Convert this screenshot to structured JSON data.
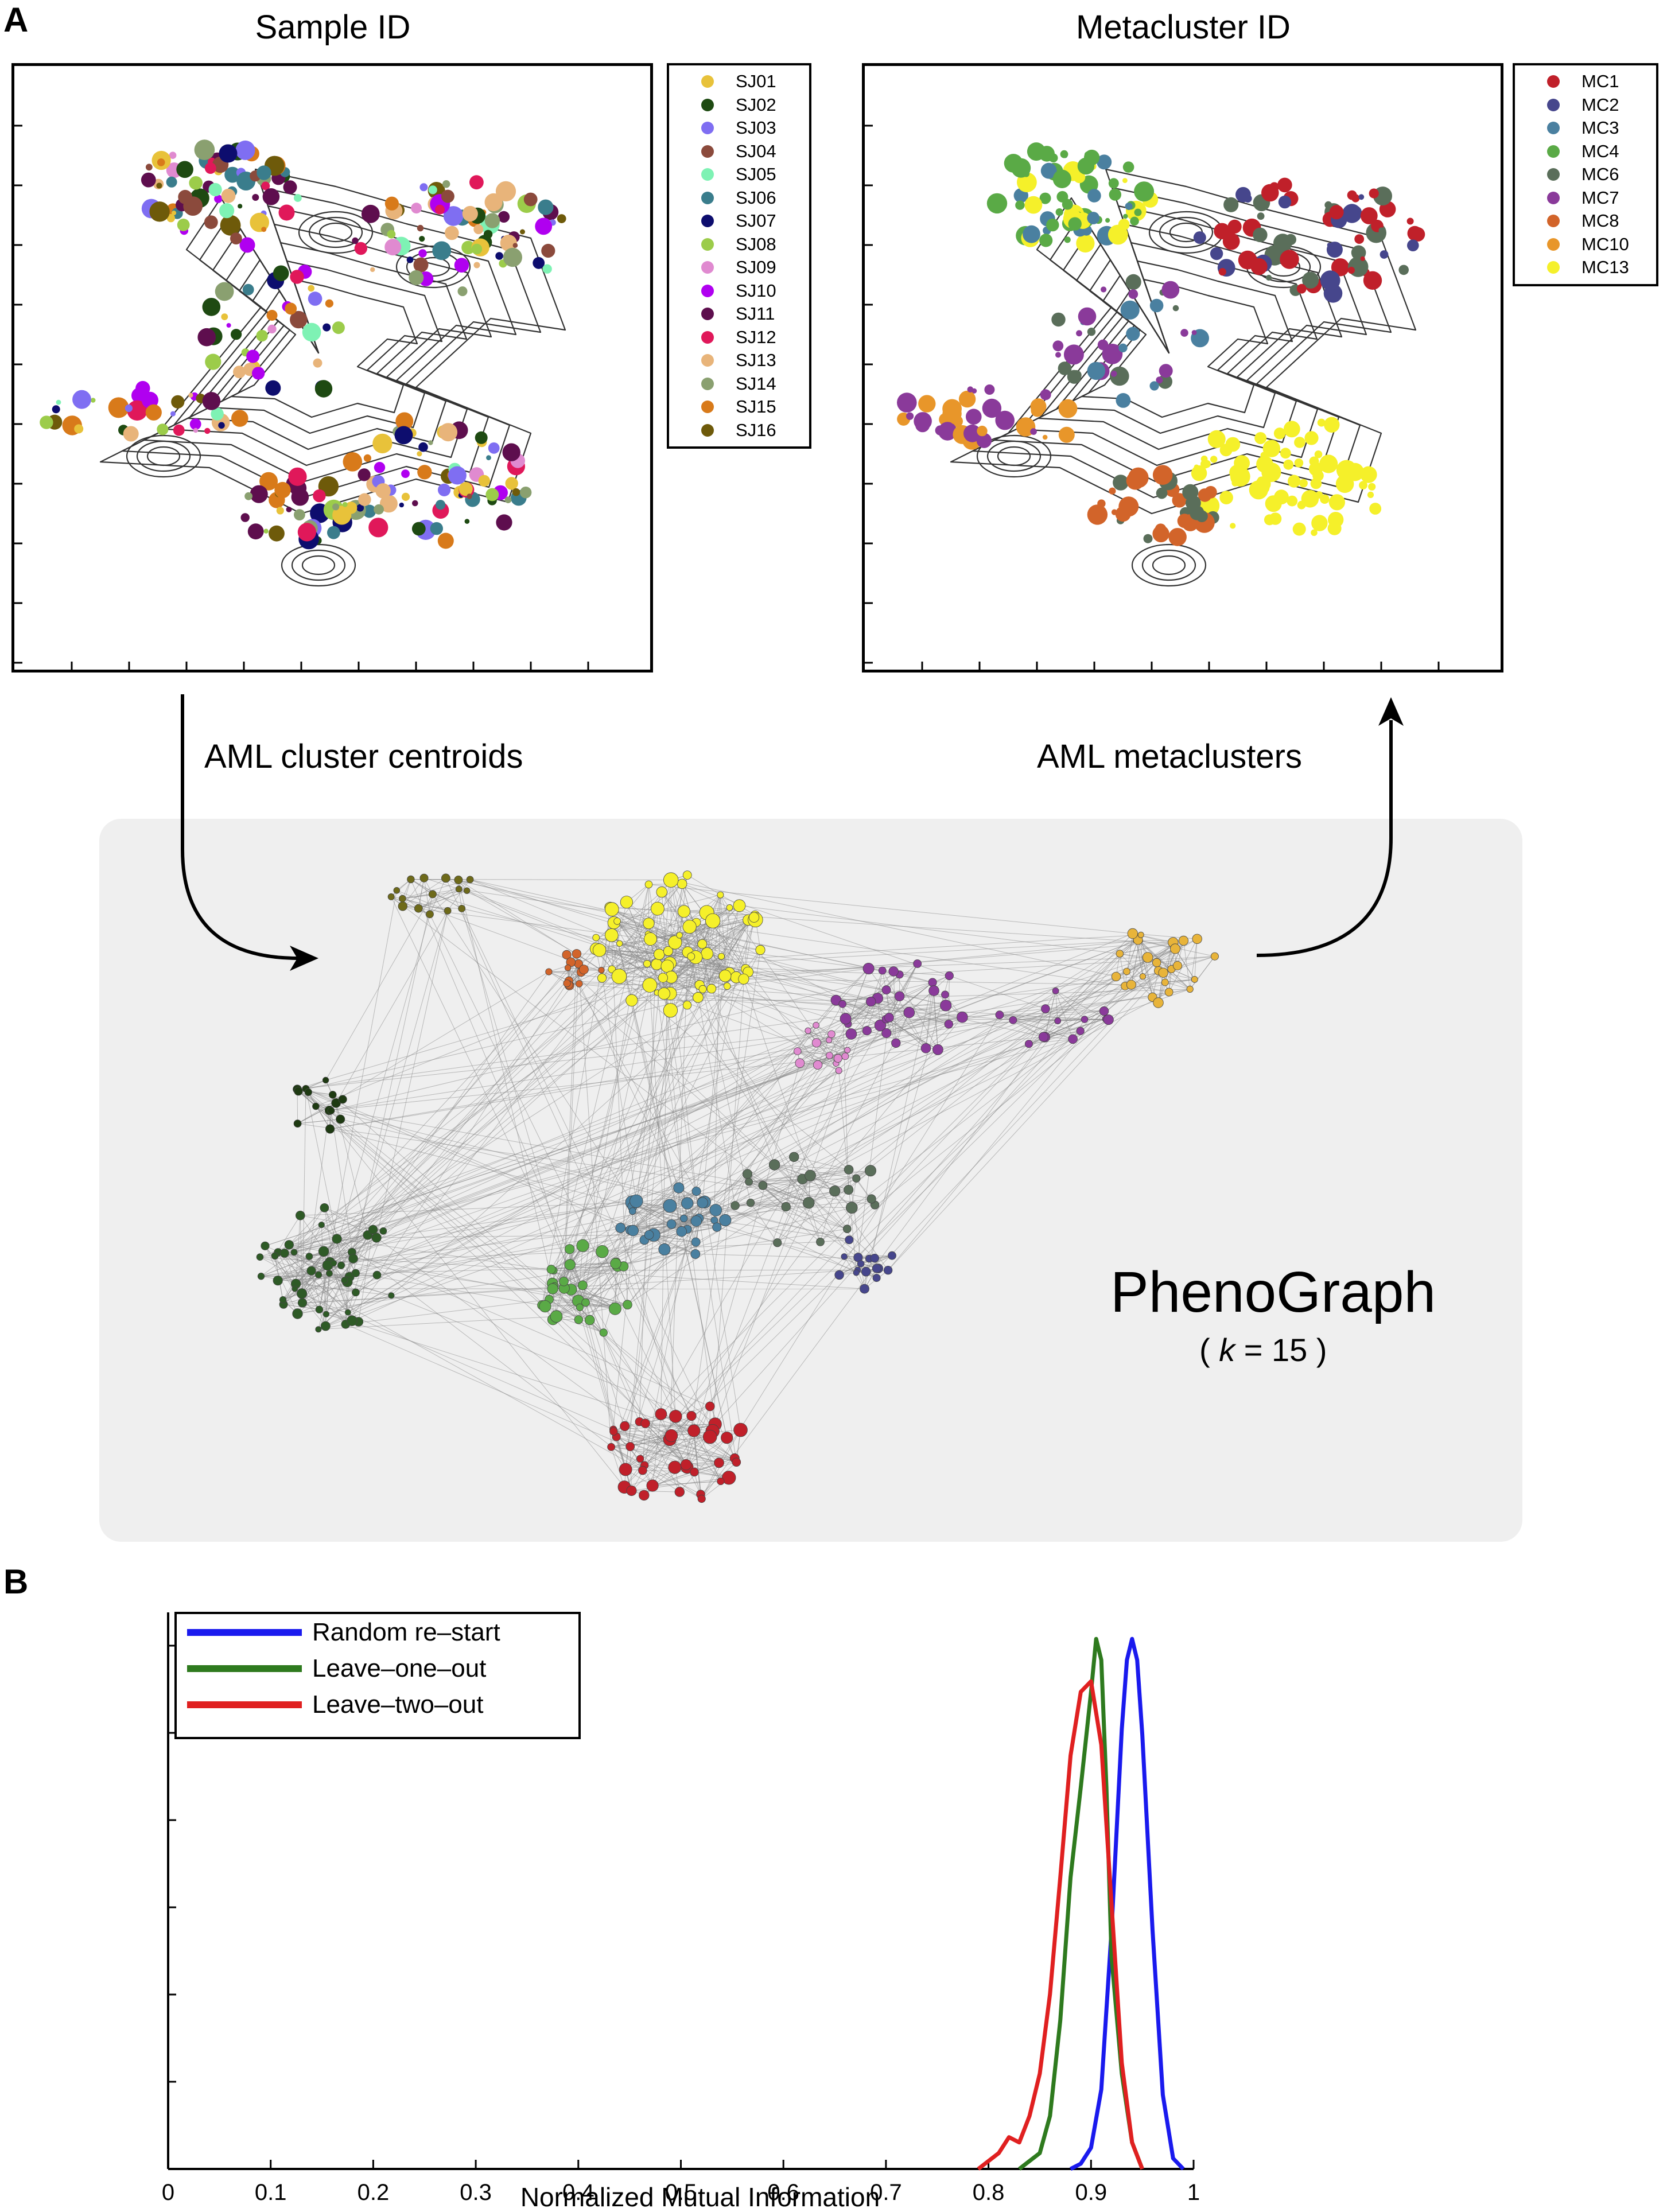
{
  "panel_a": {
    "letter": "A",
    "left_title": "Sample ID",
    "right_title": "Metacluster ID",
    "left_legend": [
      {
        "label": "SJ01",
        "color": "#e8c23a"
      },
      {
        "label": "SJ02",
        "color": "#1e4a12"
      },
      {
        "label": "SJ03",
        "color": "#7f6ef2"
      },
      {
        "label": "SJ04",
        "color": "#8b4a3c"
      },
      {
        "label": "SJ05",
        "color": "#7ef2b4"
      },
      {
        "label": "SJ06",
        "color": "#3a7d8c"
      },
      {
        "label": "SJ07",
        "color": "#0d0d6e"
      },
      {
        "label": "SJ08",
        "color": "#9ccc4a"
      },
      {
        "label": "SJ09",
        "color": "#e08ad0"
      },
      {
        "label": "SJ10",
        "color": "#b000f0"
      },
      {
        "label": "SJ11",
        "color": "#5e0e4e"
      },
      {
        "label": "SJ12",
        "color": "#e0185a"
      },
      {
        "label": "SJ13",
        "color": "#e8b47a"
      },
      {
        "label": "SJ14",
        "color": "#8aa070"
      },
      {
        "label": "SJ15",
        "color": "#d87a1a"
      },
      {
        "label": "SJ16",
        "color": "#6e5a0a"
      }
    ],
    "right_legend": [
      {
        "label": "MC1",
        "color": "#c0202a"
      },
      {
        "label": "MC2",
        "color": "#46468c"
      },
      {
        "label": "MC3",
        "color": "#4a80a0"
      },
      {
        "label": "MC4",
        "color": "#5aaa46"
      },
      {
        "label": "MC6",
        "color": "#5a6e5a"
      },
      {
        "label": "MC7",
        "color": "#8a3a9a"
      },
      {
        "label": "MC8",
        "color": "#d2642a"
      },
      {
        "label": "MC10",
        "color": "#e8962a"
      },
      {
        "label": "MC13",
        "color": "#f5f02a"
      }
    ],
    "arrow_left_label": "AML cluster centroids",
    "arrow_right_label": "AML metaclusters",
    "graph_title": "PhenoGraph",
    "graph_sub_open": "( ",
    "graph_sub_k": "k",
    "graph_sub_rest": " = 15 )"
  },
  "panel_b": {
    "letter": "B",
    "legend": [
      {
        "label": "Random re–start",
        "color": "#1a1aee"
      },
      {
        "label": "Leave–one–out",
        "color": "#2e7a1e"
      },
      {
        "label": "Leave–two–out",
        "color": "#e02020"
      }
    ],
    "xlabel": "Normalized Mutual Information"
  },
  "chart_data": {
    "type": "line",
    "xlabel": "Normalized Mutual Information",
    "ylabel": "",
    "xlim": [
      0,
      1
    ],
    "ylim": [
      0,
      1.05
    ],
    "x_ticks": [
      "0",
      "0.1",
      "0.2",
      "0.3",
      "0.4",
      "0.5",
      "0.6",
      "0.7",
      "0.8",
      "0.9",
      "1"
    ],
    "y_tick_labels_shown": false,
    "legend_position": "top-left",
    "series": [
      {
        "name": "Random re–start",
        "color": "#1a1aee",
        "x": [
          0.88,
          0.89,
          0.9,
          0.91,
          0.92,
          0.93,
          0.935,
          0.94,
          0.945,
          0.95,
          0.96,
          0.97,
          0.98,
          0.99
        ],
        "y": [
          0,
          0.01,
          0.04,
          0.15,
          0.45,
          0.83,
          0.96,
          1.0,
          0.96,
          0.82,
          0.45,
          0.14,
          0.02,
          0
        ]
      },
      {
        "name": "Leave–one–out",
        "color": "#2e7a1e",
        "x": [
          0.83,
          0.85,
          0.86,
          0.87,
          0.88,
          0.89,
          0.9,
          0.905,
          0.91,
          0.915,
          0.92,
          0.93,
          0.94,
          0.95
        ],
        "y": [
          0,
          0.03,
          0.1,
          0.28,
          0.55,
          0.72,
          0.9,
          1.0,
          0.96,
          0.72,
          0.4,
          0.18,
          0.05,
          0
        ]
      },
      {
        "name": "Leave–two–out",
        "color": "#e02020",
        "x": [
          0.79,
          0.81,
          0.82,
          0.83,
          0.84,
          0.85,
          0.86,
          0.87,
          0.88,
          0.89,
          0.9,
          0.91,
          0.92,
          0.93,
          0.94,
          0.95
        ],
        "y": [
          0,
          0.03,
          0.06,
          0.05,
          0.1,
          0.18,
          0.33,
          0.55,
          0.78,
          0.9,
          0.92,
          0.8,
          0.5,
          0.2,
          0.05,
          0
        ]
      }
    ]
  }
}
